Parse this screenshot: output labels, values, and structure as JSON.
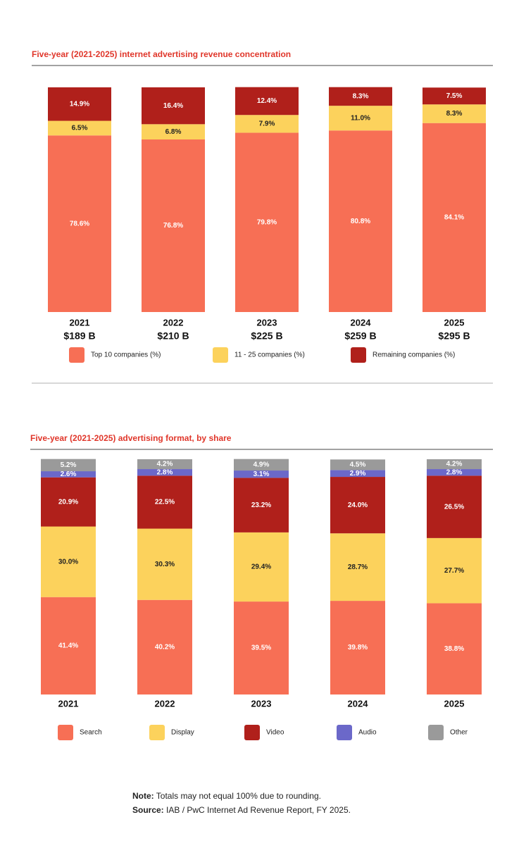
{
  "chart_data": [
    {
      "type": "bar",
      "stacked": true,
      "title": "Five-year (2021-2025) internet advertising revenue concentration",
      "categories": [
        "2021",
        "2022",
        "2023",
        "2024",
        "2025"
      ],
      "category_sublabels": [
        "$189 B",
        "$210 B",
        "$225 B",
        "$259 B",
        "$295 B"
      ],
      "ylim": [
        0,
        100
      ],
      "series": [
        {
          "name": "Top 10 companies (%)",
          "color": "#f76f55",
          "values": [
            78.6,
            76.8,
            79.8,
            80.8,
            84.1
          ],
          "value_labels": [
            "78.6%",
            "76.8%",
            "79.8%",
            "80.8%",
            "84.1%"
          ]
        },
        {
          "name": "11 - 25 companies (%)",
          "color": "#fcd25c",
          "values": [
            6.5,
            6.8,
            7.9,
            11.0,
            8.3
          ],
          "value_labels": [
            "6.5%",
            "6.8%",
            "7.9%",
            "11.0%",
            "8.3%"
          ]
        },
        {
          "name": "Remaining companies (%)",
          "color": "#b0201b",
          "values": [
            14.9,
            16.4,
            12.4,
            8.3,
            7.5
          ],
          "value_labels": [
            "14.9%",
            "16.4%",
            "12.4%",
            "8.3%",
            "7.5%"
          ]
        }
      ]
    },
    {
      "type": "bar",
      "stacked": true,
      "title": "Five-year (2021-2025) advertising format, by share",
      "categories": [
        "2021",
        "2022",
        "2023",
        "2024",
        "2025"
      ],
      "ylim": [
        0,
        100
      ],
      "series": [
        {
          "name": "Search",
          "color": "#f76f55",
          "values": [
            41.4,
            40.2,
            39.5,
            39.8,
            38.8
          ],
          "value_labels": [
            "41.4%",
            "40.2%",
            "39.5%",
            "39.8%",
            "38.8%"
          ]
        },
        {
          "name": "Display",
          "color": "#fcd25c",
          "values": [
            30.0,
            30.3,
            29.4,
            28.7,
            27.7
          ],
          "value_labels": [
            "30.0%",
            "30.3%",
            "29.4%",
            "28.7%",
            "27.7%"
          ]
        },
        {
          "name": "Video",
          "color": "#b0201b",
          "values": [
            20.9,
            22.5,
            23.2,
            24.0,
            26.5
          ],
          "value_labels": [
            "20.9%",
            "22.5%",
            "23.2%",
            "24.0%",
            "26.5%"
          ]
        },
        {
          "name": "Audio",
          "color": "#6b68c9",
          "values": [
            2.6,
            2.8,
            3.1,
            2.9,
            2.8
          ],
          "value_labels": [
            "2.6%",
            "2.8%",
            "3.1%",
            "2.9%",
            "2.8%"
          ]
        },
        {
          "name": "Other",
          "color": "#9a9a9a",
          "values": [
            5.2,
            4.2,
            4.9,
            4.5,
            4.2
          ],
          "value_labels": [
            "5.2%",
            "4.2%",
            "4.9%",
            "4.5%",
            "4.2%"
          ]
        }
      ]
    }
  ],
  "notes": [
    {
      "label": "Note:",
      "text": "Totals may not equal 100% due to rounding."
    },
    {
      "label": "Source:",
      "text": "IAB / PwC Internet Ad Revenue Report, FY 2025."
    }
  ]
}
